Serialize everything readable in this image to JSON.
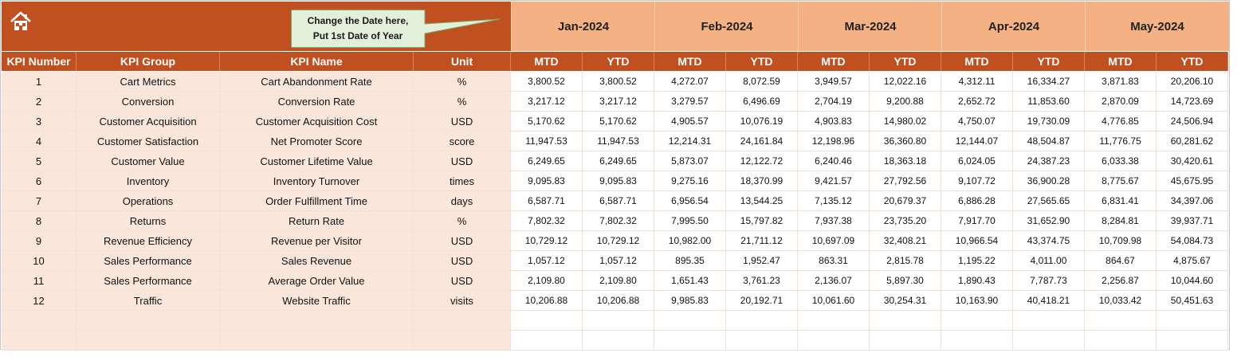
{
  "banner": {
    "home_icon": "home-icon",
    "callout_line1": "Change the Date here,",
    "callout_line2": "Put 1st Date of Year",
    "colors": {
      "header": "#c0501f",
      "month": "#f4b183",
      "left_cells": "#fbe6dc"
    }
  },
  "months": [
    "Jan-2024",
    "Feb-2024",
    "Mar-2024",
    "Apr-2024",
    "May-2024"
  ],
  "headers": {
    "kpi_number": "KPI Number",
    "kpi_group": "KPI Group",
    "kpi_name": "KPI Name",
    "unit": "Unit",
    "mtd": "MTD",
    "ytd": "YTD"
  },
  "rows": [
    {
      "num": "1",
      "group": "Cart Metrics",
      "name": "Cart Abandonment Rate",
      "unit": "%",
      "vals": [
        "3,800.52",
        "3,800.52",
        "4,272.07",
        "8,072.59",
        "3,949.57",
        "12,022.16",
        "4,312.11",
        "16,334.27",
        "3,871.83",
        "20,206.10"
      ]
    },
    {
      "num": "2",
      "group": "Conversion",
      "name": "Conversion Rate",
      "unit": "%",
      "vals": [
        "3,217.12",
        "3,217.12",
        "3,279.57",
        "6,496.69",
        "2,704.19",
        "9,200.88",
        "2,652.72",
        "11,853.60",
        "2,870.09",
        "14,723.69"
      ]
    },
    {
      "num": "3",
      "group": "Customer Acquisition",
      "name": "Customer Acquisition Cost",
      "unit": "USD",
      "vals": [
        "5,170.62",
        "5,170.62",
        "4,905.57",
        "10,076.19",
        "4,903.83",
        "14,980.02",
        "4,750.07",
        "19,730.09",
        "4,776.85",
        "24,506.94"
      ]
    },
    {
      "num": "4",
      "group": "Customer Satisfaction",
      "name": "Net Promoter Score",
      "unit": "score",
      "vals": [
        "11,947.53",
        "11,947.53",
        "12,214.31",
        "24,161.84",
        "12,198.96",
        "36,360.80",
        "12,144.07",
        "48,504.87",
        "11,776.75",
        "60,281.62"
      ]
    },
    {
      "num": "5",
      "group": "Customer Value",
      "name": "Customer Lifetime Value",
      "unit": "USD",
      "vals": [
        "6,249.65",
        "6,249.65",
        "5,873.07",
        "12,122.72",
        "6,240.46",
        "18,363.18",
        "6,024.05",
        "24,387.23",
        "6,033.38",
        "30,420.61"
      ]
    },
    {
      "num": "6",
      "group": "Inventory",
      "name": "Inventory Turnover",
      "unit": "times",
      "vals": [
        "9,095.83",
        "9,095.83",
        "9,275.16",
        "18,370.99",
        "9,421.57",
        "27,792.56",
        "9,107.72",
        "36,900.28",
        "8,775.67",
        "45,675.95"
      ]
    },
    {
      "num": "7",
      "group": "Operations",
      "name": "Order Fulfillment Time",
      "unit": "days",
      "vals": [
        "6,587.71",
        "6,587.71",
        "6,956.54",
        "13,544.25",
        "7,135.12",
        "20,679.37",
        "6,886.28",
        "27,565.65",
        "6,831.41",
        "34,397.06"
      ]
    },
    {
      "num": "8",
      "group": "Returns",
      "name": "Return Rate",
      "unit": "%",
      "vals": [
        "7,802.32",
        "7,802.32",
        "7,995.50",
        "15,797.82",
        "7,937.38",
        "23,735.20",
        "7,917.70",
        "31,652.90",
        "8,284.81",
        "39,937.71"
      ]
    },
    {
      "num": "9",
      "group": "Revenue Efficiency",
      "name": "Revenue per Visitor",
      "unit": "USD",
      "vals": [
        "10,729.12",
        "10,729.12",
        "10,982.00",
        "21,711.12",
        "10,697.09",
        "32,408.21",
        "10,966.54",
        "43,374.75",
        "10,709.98",
        "54,084.73"
      ]
    },
    {
      "num": "10",
      "group": "Sales Performance",
      "name": "Sales Revenue",
      "unit": "USD",
      "vals": [
        "1,057.12",
        "1,057.12",
        "895.35",
        "1,952.47",
        "863.31",
        "2,815.78",
        "1,195.22",
        "4,011.00",
        "864.67",
        "4,875.67"
      ]
    },
    {
      "num": "11",
      "group": "Sales Performance",
      "name": "Average Order Value",
      "unit": "USD",
      "vals": [
        "2,109.80",
        "2,109.80",
        "1,651.43",
        "3,761.23",
        "2,136.07",
        "5,897.30",
        "1,890.43",
        "7,787.73",
        "2,256.87",
        "10,044.60"
      ]
    },
    {
      "num": "12",
      "group": "Traffic",
      "name": "Website Traffic",
      "unit": "visits",
      "vals": [
        "10,206.88",
        "10,206.88",
        "9,985.83",
        "20,192.71",
        "10,061.60",
        "30,254.31",
        "10,163.90",
        "40,418.21",
        "10,033.42",
        "50,451.63"
      ]
    }
  ],
  "empty_rows": 2
}
